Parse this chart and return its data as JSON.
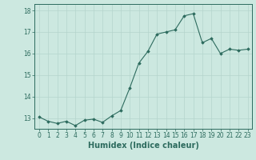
{
  "xlabel": "Humidex (Indice chaleur)",
  "x": [
    0,
    1,
    2,
    3,
    4,
    5,
    6,
    7,
    8,
    9,
    10,
    11,
    12,
    13,
    14,
    15,
    16,
    17,
    18,
    19,
    20,
    21,
    22,
    23
  ],
  "y": [
    13.05,
    12.85,
    12.75,
    12.85,
    12.65,
    12.9,
    12.95,
    12.8,
    13.1,
    13.35,
    14.4,
    15.55,
    16.1,
    16.9,
    17.0,
    17.1,
    17.75,
    17.85,
    16.5,
    16.7,
    16.0,
    16.2,
    16.15,
    16.2
  ],
  "line_color": "#2d6b5e",
  "marker_color": "#2d6b5e",
  "bg_color": "#cce8e0",
  "grid_color": "#b5d4cc",
  "axis_color": "#2d6b5e",
  "tick_color": "#2d6b5e",
  "label_color": "#2d6b5e",
  "ylim": [
    12.5,
    18.3
  ],
  "xlim": [
    -0.5,
    23.5
  ],
  "yticks": [
    13,
    14,
    15,
    16,
    17,
    18
  ],
  "xticks": [
    0,
    1,
    2,
    3,
    4,
    5,
    6,
    7,
    8,
    9,
    10,
    11,
    12,
    13,
    14,
    15,
    16,
    17,
    18,
    19,
    20,
    21,
    22,
    23
  ],
  "tick_fontsize": 5.5,
  "label_fontsize": 7.0
}
